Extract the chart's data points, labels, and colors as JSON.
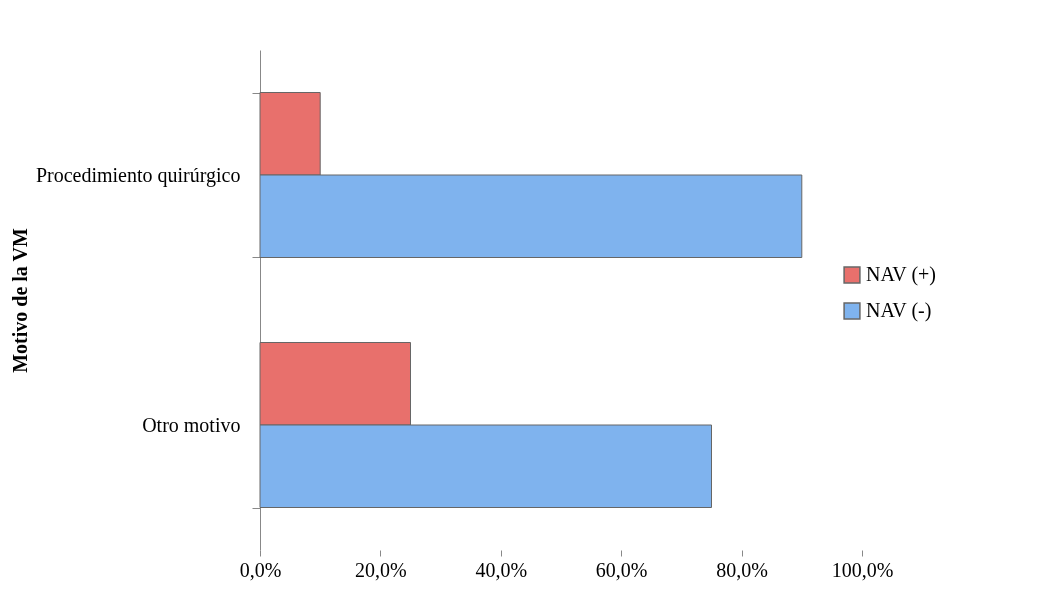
{
  "chart_data": {
    "type": "bar",
    "orientation": "horizontal",
    "ylabel": "Motivo de la VM",
    "categories": [
      "Procedimiento quirúrgico",
      "Otro motivo"
    ],
    "series": [
      {
        "name": "NAV (+)",
        "color": "#e8706c",
        "values": [
          10,
          25
        ]
      },
      {
        "name": "NAV (-)",
        "color": "#7fb3ee",
        "values": [
          90,
          75
        ]
      }
    ],
    "xlim": [
      0,
      100
    ],
    "xticks": [
      {
        "value": 0,
        "label": "0,0%"
      },
      {
        "value": 20,
        "label": "20,0%"
      },
      {
        "value": 40,
        "label": "40,0%"
      },
      {
        "value": 60,
        "label": "60,0%"
      },
      {
        "value": 80,
        "label": "80,0%"
      },
      {
        "value": 100,
        "label": "100,0%"
      }
    ],
    "grid": false,
    "legend": "right"
  }
}
